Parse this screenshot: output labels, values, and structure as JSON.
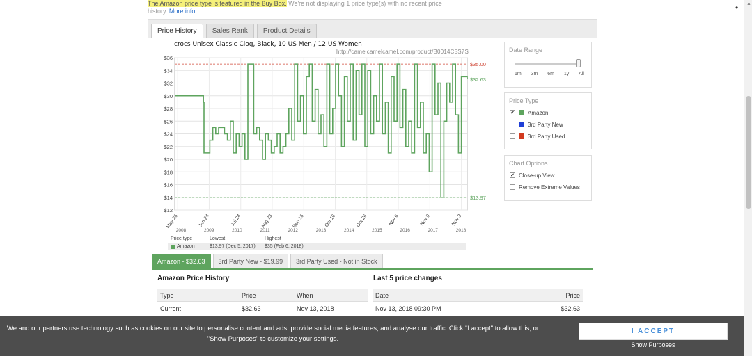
{
  "top_note": {
    "highlight": "The Amazon price type is featured in the Buy Box.",
    "rest": " We're not displaying 1 price type(s) with no recent price",
    "line2": "history. ",
    "link": "More info."
  },
  "tabs": [
    "Price History",
    "Sales Rank",
    "Product Details"
  ],
  "chart": {
    "title": "crocs Unisex Classic Clog, Black, 10 US Men / 12 US Women",
    "url": "http://camelcamelcamel.com/product/B0014C5S7S"
  },
  "chart_data": {
    "type": "line",
    "ylim": [
      12,
      36
    ],
    "y_ticks": [
      "$12",
      "$14",
      "$16",
      "$18",
      "$20",
      "$22",
      "$24",
      "$26",
      "$28",
      "$30",
      "$32",
      "$34",
      "$36"
    ],
    "x_date_labels": [
      "May 26",
      "Jan 24",
      "Jul 24",
      "Aug 23",
      "Sep 16",
      "Oct 16",
      "Oct 26",
      "Nov 6",
      "Nov 9",
      "Nov 3"
    ],
    "x_year_labels": [
      "2008",
      "2009",
      "2010",
      "2011",
      "2012",
      "2013",
      "2014",
      "2015",
      "2016",
      "2017",
      "2018"
    ],
    "grid": true,
    "line_color": "#5ea45e",
    "series": [
      {
        "name": "Amazon",
        "x": [
          0,
          0.05,
          0.08,
          0.09,
          0.095,
          0.098,
          0.1,
          0.12,
          0.13,
          0.14,
          0.15,
          0.17,
          0.18,
          0.19,
          0.2,
          0.21,
          0.22,
          0.23,
          0.24,
          0.25,
          0.27,
          0.28,
          0.29,
          0.3,
          0.31,
          0.32,
          0.33,
          0.34,
          0.35,
          0.36,
          0.37,
          0.38,
          0.39,
          0.4,
          0.41,
          0.42,
          0.43,
          0.44,
          0.45,
          0.46,
          0.47,
          0.48,
          0.49,
          0.5,
          0.51,
          0.52,
          0.53,
          0.54,
          0.55,
          0.56,
          0.57,
          0.58,
          0.59,
          0.6,
          0.61,
          0.62,
          0.63,
          0.64,
          0.65,
          0.66,
          0.67,
          0.68,
          0.69,
          0.7,
          0.71,
          0.72,
          0.73,
          0.74,
          0.75,
          0.76,
          0.77,
          0.78,
          0.79,
          0.8,
          0.81,
          0.82,
          0.83,
          0.84,
          0.85,
          0.86,
          0.87,
          0.88,
          0.89,
          0.9,
          0.91,
          0.92,
          0.93,
          0.94,
          0.95,
          0.96,
          0.97,
          0.98,
          1
        ],
        "y": [
          30,
          30,
          30,
          30,
          30,
          29,
          21,
          23,
          25,
          24,
          25,
          24,
          23,
          26,
          21,
          24,
          22,
          24,
          20,
          35,
          24,
          25,
          23,
          20,
          24,
          23,
          21,
          22,
          24,
          21,
          22,
          24,
          28,
          23,
          35,
          26,
          30,
          24,
          33,
          35,
          26,
          31,
          24,
          27,
          22,
          35,
          24,
          28,
          35,
          30,
          22,
          33,
          26,
          35,
          23,
          34,
          27,
          35,
          22,
          34,
          24,
          30,
          26,
          35,
          24,
          29,
          21,
          33,
          26,
          35,
          25,
          31,
          22,
          26,
          21,
          35,
          25,
          29,
          21,
          24,
          18,
          35,
          27,
          32,
          14,
          26,
          32,
          29,
          35,
          27,
          21,
          33,
          32.63
        ],
        "lowest": 13.97,
        "highest": 35.0,
        "current": 32.63
      }
    ],
    "ref_high_label": "$35.00",
    "ref_current_label": "$32.63",
    "ref_low_label": "$13.97"
  },
  "stats": {
    "headers": [
      "Price type",
      "Lowest",
      "Highest"
    ],
    "row": [
      "Amazon",
      "$13.97 (Dec 5, 2017)",
      "$35 (Feb 6, 2018)"
    ]
  },
  "date_range": {
    "title": "Date Range",
    "labels": [
      "1m",
      "3m",
      "6m",
      "1y",
      "All"
    ],
    "selected_fraction": 1.0
  },
  "price_type": {
    "title": "Price Type",
    "items": [
      {
        "label": "Amazon",
        "checked": true,
        "color": "#5ea45e"
      },
      {
        "label": "3rd Party New",
        "checked": false,
        "color": "#1f3fd6"
      },
      {
        "label": "3rd Party Used",
        "checked": false,
        "color": "#d23a1f"
      }
    ]
  },
  "chart_options": {
    "title": "Chart Options",
    "items": [
      {
        "label": "Close-up View",
        "checked": true
      },
      {
        "label": "Remove Extreme Values",
        "checked": false
      }
    ]
  },
  "subtabs": [
    "Amazon - $32.63",
    "3rd Party New - $19.99",
    "3rd Party Used - Not in Stock"
  ],
  "history": {
    "title": "Amazon Price History",
    "headers": [
      "Type",
      "Price",
      "When"
    ],
    "row": [
      "Current",
      "$32.63",
      "Nov 13, 2018"
    ]
  },
  "changes": {
    "title": "Last 5 price changes",
    "headers": [
      "Date",
      "Price"
    ],
    "row": [
      "Nov 13, 2018 09:30 PM",
      "$32.63"
    ]
  },
  "cookie": {
    "text_line1": "We and our partners use technology such as cookies on our site to personalise content and ads, provide social media features, and analyse our traffic. Click \"I accept\" to allow this, or",
    "text_line2": "\"Show Purposes\" to customize your settings.",
    "accept": "I ACCEPT",
    "show_purposes": "Show Purposes"
  },
  "menu_glyph": "•"
}
